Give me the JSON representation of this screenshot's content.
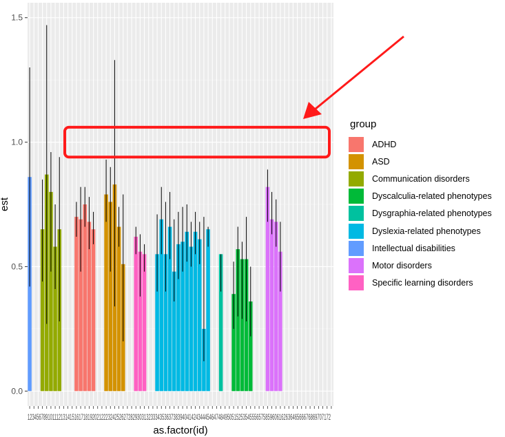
{
  "chart_data": {
    "type": "bar",
    "xlabel": "as.factor(id)",
    "ylabel": "est",
    "ylim": [
      -0.06,
      1.56
    ],
    "yticks": [
      0.0,
      0.5,
      1.0,
      1.5
    ],
    "ytick_labels": [
      "0.0",
      "0.5",
      "1.0",
      "1.5"
    ],
    "xtick_text": "123456789101112131415161718192021222324252627282930313233343536373839404142434445464748495051525354555657585960616263646566676869707172",
    "legend_title": "group",
    "legend_position": "right",
    "grid": true,
    "groups": [
      {
        "name": "ADHD",
        "color": "#F8766D"
      },
      {
        "name": "ASD",
        "color": "#D39200"
      },
      {
        "name": "Communication disorders",
        "color": "#93AA00"
      },
      {
        "name": "Dyscalculia-related phenotypes",
        "color": "#00BA38"
      },
      {
        "name": "Dysgraphia-related phenotypes",
        "color": "#00C19F"
      },
      {
        "name": "Dyslexia-related phenotypes",
        "color": "#00B9E3"
      },
      {
        "name": "Intellectual disabilities",
        "color": "#619CFF"
      },
      {
        "name": "Motor disorders",
        "color": "#DB72FB"
      },
      {
        "name": "Specific learning disorders",
        "color": "#FF61C3"
      }
    ],
    "bars": [
      {
        "id": 1,
        "group": "Intellectual disabilities",
        "est": 0.86,
        "lower": 0.42,
        "upper": 1.3
      },
      {
        "id": 4,
        "group": "Communication disorders",
        "est": 0.65,
        "lower": 0.44,
        "upper": 0.85
      },
      {
        "id": 5,
        "group": "Communication disorders",
        "est": 0.87,
        "lower": 0.27,
        "upper": 1.47
      },
      {
        "id": 6,
        "group": "Communication disorders",
        "est": 0.8,
        "lower": 0.48,
        "upper": 0.96
      },
      {
        "id": 7,
        "group": "Communication disorders",
        "est": 0.58,
        "lower": 0.41,
        "upper": 0.75
      },
      {
        "id": 8,
        "group": "Communication disorders",
        "est": 0.65,
        "lower": 0.28,
        "upper": 0.94
      },
      {
        "id": 12,
        "group": "ADHD",
        "est": 0.7,
        "lower": 0.62,
        "upper": 0.76
      },
      {
        "id": 13,
        "group": "ADHD",
        "est": 0.69,
        "lower": 0.48,
        "upper": 0.82
      },
      {
        "id": 14,
        "group": "ADHD",
        "est": 0.75,
        "lower": 0.66,
        "upper": 0.82
      },
      {
        "id": 15,
        "group": "ADHD",
        "est": 0.68,
        "lower": 0.57,
        "upper": 0.78
      },
      {
        "id": 16,
        "group": "ADHD",
        "est": 0.65,
        "lower": 0.59,
        "upper": 0.72
      },
      {
        "id": 19,
        "group": "ASD",
        "est": 0.79,
        "lower": 0.68,
        "upper": 0.93
      },
      {
        "id": 20,
        "group": "ASD",
        "est": 0.76,
        "lower": 0.48,
        "upper": 0.9
      },
      {
        "id": 21,
        "group": "ASD",
        "est": 0.83,
        "lower": 0.34,
        "upper": 1.33
      },
      {
        "id": 22,
        "group": "ASD",
        "est": 0.66,
        "lower": 0.58,
        "upper": 0.74
      },
      {
        "id": 23,
        "group": "ASD",
        "est": 0.51,
        "lower": 0.2,
        "upper": 0.79
      },
      {
        "id": 26,
        "group": "Specific learning disorders",
        "est": 0.62,
        "lower": 0.55,
        "upper": 0.66
      },
      {
        "id": 27,
        "group": "Specific learning disorders",
        "est": 0.56,
        "lower": 0.38,
        "upper": 0.63
      },
      {
        "id": 28,
        "group": "Specific learning disorders",
        "est": 0.55,
        "lower": 0.48,
        "upper": 0.59
      },
      {
        "id": 31,
        "group": "Dyslexia-related phenotypes",
        "est": 0.55,
        "lower": 0.4,
        "upper": 0.71
      },
      {
        "id": 32,
        "group": "Dyslexia-related phenotypes",
        "est": 0.69,
        "lower": 0.55,
        "upper": 0.82
      },
      {
        "id": 33,
        "group": "Dyslexia-related phenotypes",
        "est": 0.55,
        "lower": 0.4,
        "upper": 0.76
      },
      {
        "id": 34,
        "group": "Dyslexia-related phenotypes",
        "est": 0.66,
        "lower": 0.53,
        "upper": 0.8
      },
      {
        "id": 35,
        "group": "Dyslexia-related phenotypes",
        "est": 0.48,
        "lower": 0.36,
        "upper": 0.69
      },
      {
        "id": 36,
        "group": "Dyslexia-related phenotypes",
        "est": 0.59,
        "lower": 0.45,
        "upper": 0.72
      },
      {
        "id": 37,
        "group": "Dyslexia-related phenotypes",
        "est": 0.6,
        "lower": 0.48,
        "upper": 0.74
      },
      {
        "id": 38,
        "group": "Dyslexia-related phenotypes",
        "est": 0.64,
        "lower": 0.52,
        "upper": 0.75
      },
      {
        "id": 39,
        "group": "Dyslexia-related phenotypes",
        "est": 0.58,
        "lower": 0.5,
        "upper": 0.68
      },
      {
        "id": 40,
        "group": "Dyslexia-related phenotypes",
        "est": 0.64,
        "lower": 0.55,
        "upper": 0.72
      },
      {
        "id": 41,
        "group": "Dyslexia-related phenotypes",
        "est": 0.61,
        "lower": 0.51,
        "upper": 0.68
      },
      {
        "id": 42,
        "group": "Dyslexia-related phenotypes",
        "est": 0.25,
        "lower": 0.12,
        "upper": 0.7
      },
      {
        "id": 43,
        "group": "Dyslexia-related phenotypes",
        "est": 0.65,
        "lower": 0.58,
        "upper": 0.66
      },
      {
        "id": 46,
        "group": "Dysgraphia-related phenotypes",
        "est": 0.55,
        "lower": 0.4,
        "upper": 0.55
      },
      {
        "id": 49,
        "group": "Dyscalculia-related phenotypes",
        "est": 0.39,
        "lower": 0.25,
        "upper": 0.52
      },
      {
        "id": 50,
        "group": "Dyscalculia-related phenotypes",
        "est": 0.57,
        "lower": 0.3,
        "upper": 0.66
      },
      {
        "id": 51,
        "group": "Dyscalculia-related phenotypes",
        "est": 0.53,
        "lower": 0.29,
        "upper": 0.6
      },
      {
        "id": 52,
        "group": "Dyscalculia-related phenotypes",
        "est": 0.53,
        "lower": 0.28,
        "upper": 0.7
      },
      {
        "id": 53,
        "group": "Dyscalculia-related phenotypes",
        "est": 0.36,
        "lower": 0.22,
        "upper": 0.5
      },
      {
        "id": 57,
        "group": "Motor disorders",
        "est": 0.82,
        "lower": 0.68,
        "upper": 0.89
      },
      {
        "id": 58,
        "group": "Motor disorders",
        "est": 0.69,
        "lower": 0.63,
        "upper": 0.8
      },
      {
        "id": 59,
        "group": "Motor disorders",
        "est": 0.68,
        "lower": 0.58,
        "upper": 0.77
      },
      {
        "id": 60,
        "group": "Motor disorders",
        "est": 0.56,
        "lower": 0.4,
        "upper": 0.68
      }
    ],
    "annotations": {
      "highlight_box": {
        "ymin": 0.94,
        "ymax": 1.06,
        "color": "#FF1A1A"
      },
      "arrow_color": "#FF1A1A"
    }
  }
}
